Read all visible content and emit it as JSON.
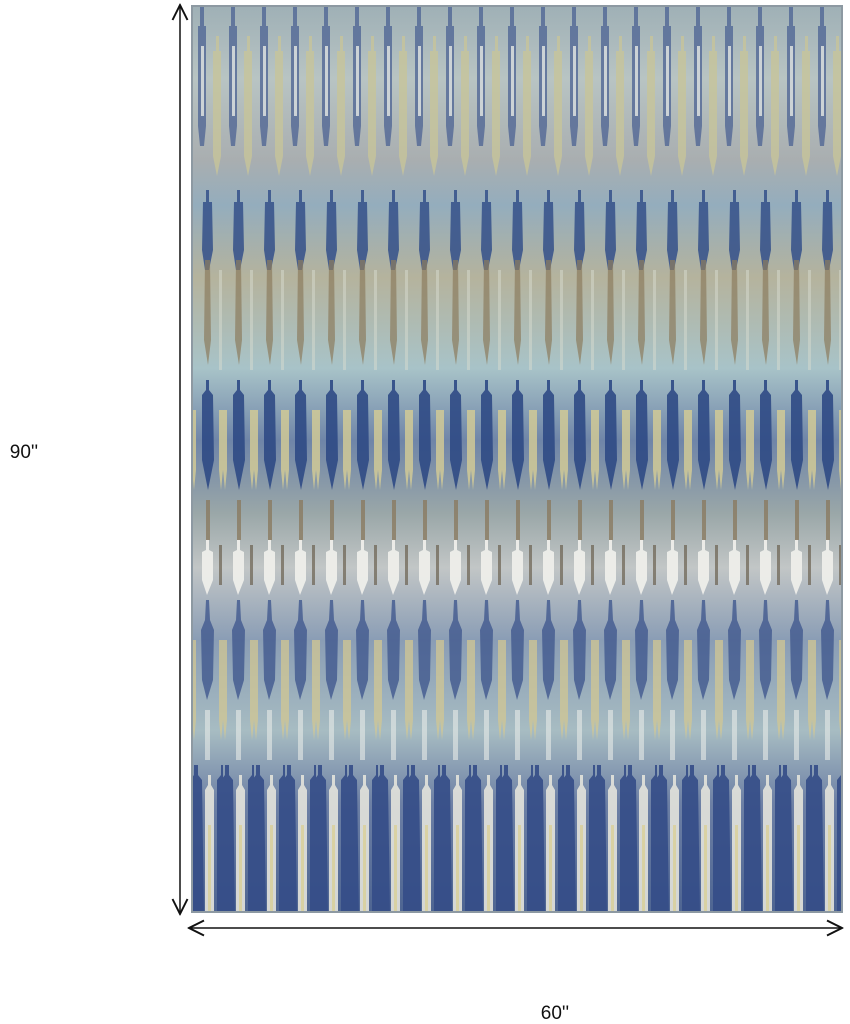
{
  "height_label": "90''",
  "width_label": "60''"
}
